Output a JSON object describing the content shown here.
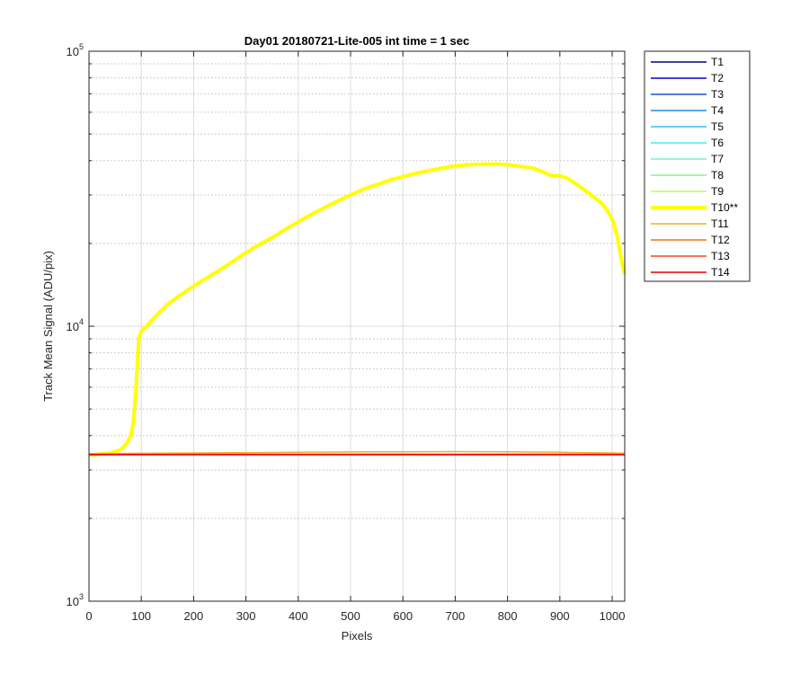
{
  "chart_data": {
    "type": "line",
    "title": "Day01 20180721-Lite-005 int time = 1 sec",
    "xlabel": "Pixels",
    "ylabel": "Track Mean Signal (ADU/pix)",
    "xlim": [
      0,
      1024
    ],
    "ylim": [
      1000,
      100000
    ],
    "yscale": "log",
    "grid": true,
    "legend_position": "outside-right",
    "x_ticks": [
      "0",
      "100",
      "200",
      "300",
      "400",
      "500",
      "600",
      "700",
      "800",
      "900",
      "1000"
    ],
    "y_ticks": [
      {
        "base": "10",
        "exp": "3",
        "value": 1000
      },
      {
        "base": "10",
        "exp": "4",
        "value": 10000
      },
      {
        "base": "10",
        "exp": "5",
        "value": 100000
      }
    ],
    "series": [
      {
        "name": "T1",
        "color": "#00007f",
        "width": 1.5,
        "x": [
          0,
          1024
        ],
        "y": [
          3420,
          3420
        ]
      },
      {
        "name": "T2",
        "color": "#0000d8",
        "width": 1.5,
        "x": [
          0,
          1024
        ],
        "y": [
          3420,
          3420
        ]
      },
      {
        "name": "T3",
        "color": "#1a4fd8",
        "width": 1.5,
        "x": [
          0,
          1024
        ],
        "y": [
          3420,
          3420
        ]
      },
      {
        "name": "T4",
        "color": "#1f8ee0",
        "width": 1.5,
        "x": [
          0,
          1024
        ],
        "y": [
          3420,
          3420
        ]
      },
      {
        "name": "T5",
        "color": "#36c0f0",
        "width": 1.5,
        "x": [
          0,
          1024
        ],
        "y": [
          3420,
          3420
        ]
      },
      {
        "name": "T6",
        "color": "#44ecec",
        "width": 1.5,
        "x": [
          0,
          1024
        ],
        "y": [
          3420,
          3420
        ]
      },
      {
        "name": "T7",
        "color": "#7aeed0",
        "width": 1.5,
        "x": [
          0,
          1024
        ],
        "y": [
          3420,
          3420
        ]
      },
      {
        "name": "T8",
        "color": "#8ef08e",
        "width": 1.5,
        "x": [
          0,
          1024
        ],
        "y": [
          3420,
          3420
        ]
      },
      {
        "name": "T9",
        "color": "#c8f060",
        "width": 1.5,
        "x": [
          0,
          1024
        ],
        "y": [
          3420,
          3420
        ]
      },
      {
        "name": "T10**",
        "color": "#ffff00",
        "width": 4,
        "x": [
          0,
          40,
          60,
          70,
          80,
          85,
          90,
          95,
          100,
          110,
          130,
          150,
          175,
          200,
          225,
          250,
          275,
          300,
          325,
          350,
          375,
          400,
          425,
          450,
          475,
          500,
          525,
          550,
          575,
          600,
          625,
          650,
          675,
          700,
          725,
          750,
          775,
          800,
          825,
          850,
          870,
          880,
          890,
          900,
          910,
          920,
          940,
          960,
          980,
          990,
          1000,
          1005,
          1010,
          1015,
          1020,
          1024
        ],
        "y": [
          3400,
          3450,
          3550,
          3700,
          4000,
          4500,
          6000,
          9000,
          9600,
          10000,
          11000,
          12000,
          13000,
          14000,
          15000,
          16000,
          17200,
          18500,
          19800,
          21000,
          22500,
          24000,
          25500,
          27000,
          28500,
          30000,
          31500,
          32700,
          34000,
          35000,
          36000,
          36800,
          37600,
          38300,
          38700,
          38800,
          38900,
          38700,
          38100,
          37500,
          36300,
          35500,
          35300,
          35200,
          34800,
          34000,
          32000,
          30000,
          28000,
          26500,
          24500,
          23000,
          21000,
          18500,
          16500,
          15500
        ]
      },
      {
        "name": "T11",
        "color": "#f0b020",
        "width": 1.5,
        "x": [
          0,
          100,
          200,
          300,
          400,
          500,
          600,
          700,
          800,
          900,
          1000,
          1024
        ],
        "y": [
          3440,
          3450,
          3460,
          3470,
          3480,
          3490,
          3495,
          3500,
          3495,
          3480,
          3460,
          3450
        ]
      },
      {
        "name": "T12",
        "color": "#f07020",
        "width": 1.5,
        "x": [
          0,
          1024
        ],
        "y": [
          3420,
          3420
        ]
      },
      {
        "name": "T13",
        "color": "#f04020",
        "width": 1.5,
        "x": [
          0,
          1024
        ],
        "y": [
          3415,
          3415
        ]
      },
      {
        "name": "T14",
        "color": "#e00000",
        "width": 1.5,
        "x": [
          0,
          1024
        ],
        "y": [
          3410,
          3410
        ]
      }
    ]
  }
}
